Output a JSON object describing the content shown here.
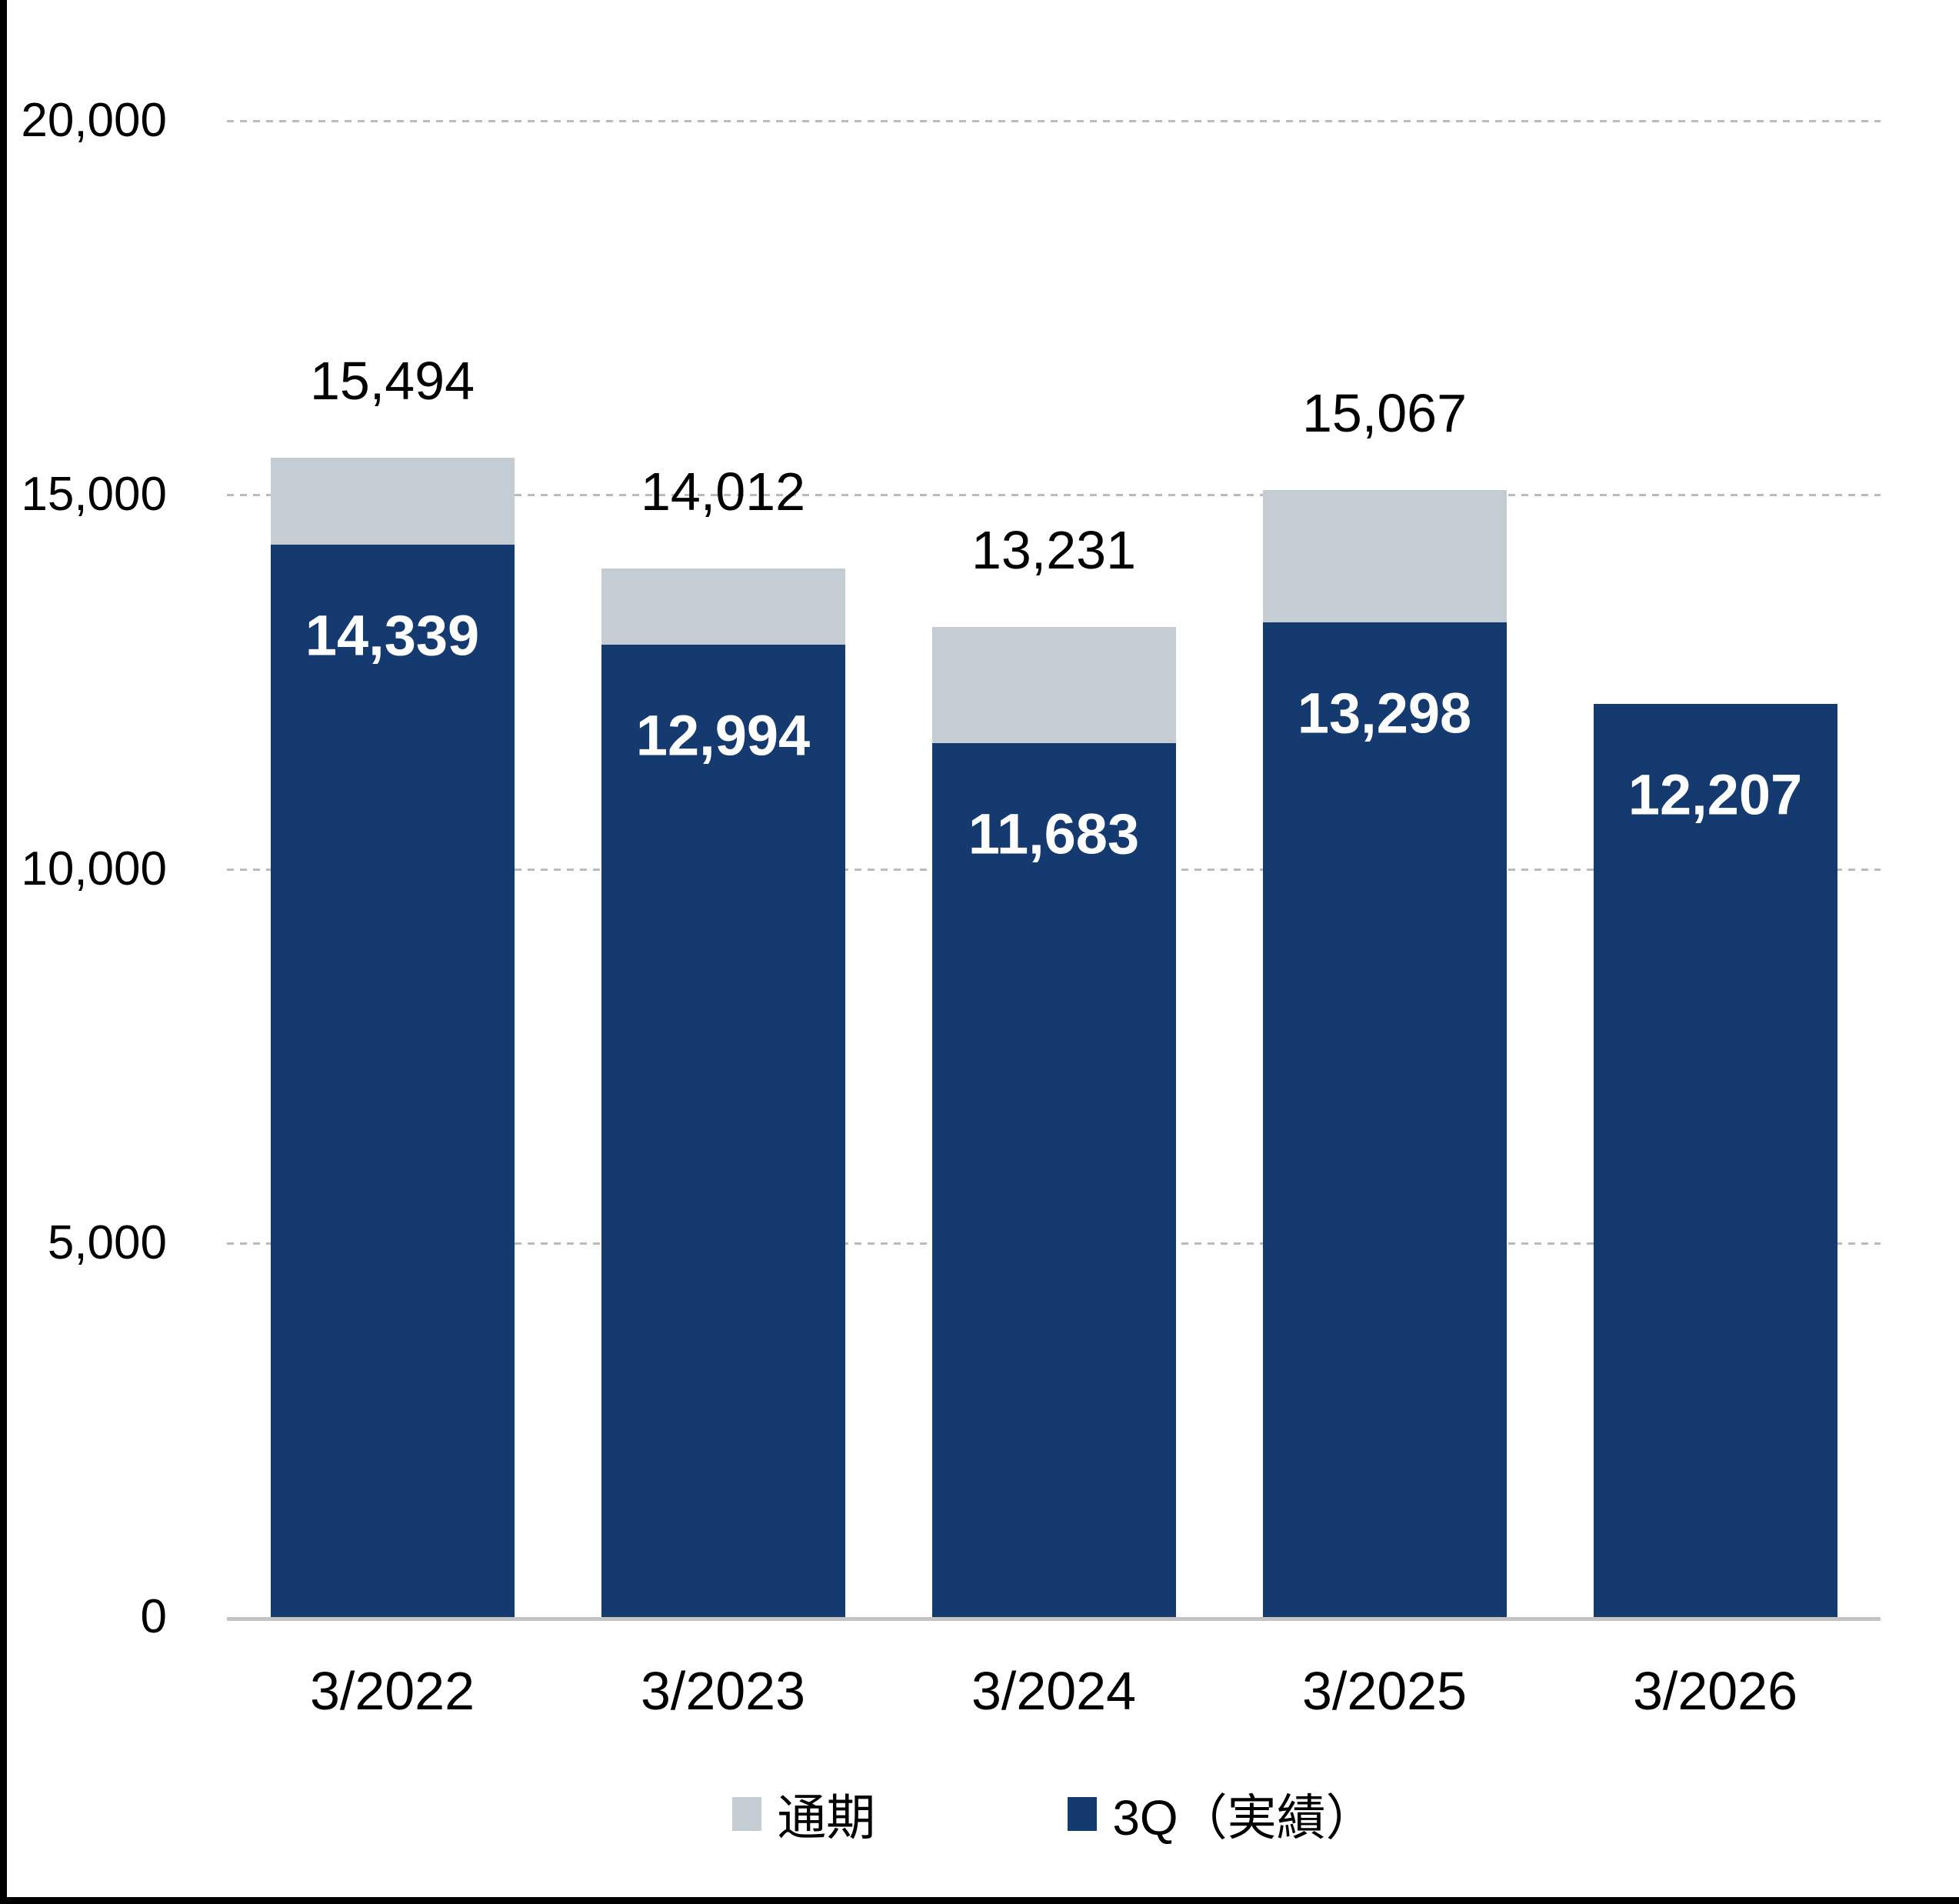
{
  "chart_data": {
    "type": "bar",
    "stacked": true,
    "orientation": "vertical",
    "categories": [
      "3/2022",
      "3/2023",
      "3/2024",
      "3/2025",
      "3/2026"
    ],
    "series": [
      {
        "name": "通期",
        "role": "full-year total (light cap on top of 3Q actual)",
        "totals": [
          15494,
          14012,
          13231,
          15067,
          null
        ],
        "total_labels": [
          "15,494",
          "14,012",
          "13,231",
          "15,067",
          null
        ],
        "color": "#c5cdd4"
      },
      {
        "name": "3Q（実績）",
        "role": "3Q actual (dark base segment)",
        "values": [
          14339,
          12994,
          11683,
          13298,
          12207
        ],
        "value_labels": [
          "14,339",
          "12,994",
          "11,683",
          "13,298",
          "12,207"
        ],
        "color": "#153a6f"
      }
    ],
    "ylim": [
      0,
      20000
    ],
    "y_ticks": [
      {
        "value": 0,
        "label": "0"
      },
      {
        "value": 5000,
        "label": "5,000"
      },
      {
        "value": 10000,
        "label": "10,000"
      },
      {
        "value": 15000,
        "label": "15,000"
      },
      {
        "value": 20000,
        "label": "20,000"
      }
    ],
    "grid": "horizontal dashed gridlines, hidden behind bars",
    "legend_position": "bottom center",
    "colors": {
      "bar_3q": "#153a6f",
      "bar_full_year_cap": "#c5cdd4",
      "gridline": "#b9bcbe",
      "axis_line": "#c4c4c4",
      "inside_label_text": "#ffffff",
      "outside_label_text": "#000000",
      "page_border": "#000000"
    }
  },
  "legend": {
    "items": [
      {
        "label": "通期",
        "color": "#c5cdd4"
      },
      {
        "label": "3Q（実績）",
        "color": "#153a6f"
      }
    ]
  }
}
